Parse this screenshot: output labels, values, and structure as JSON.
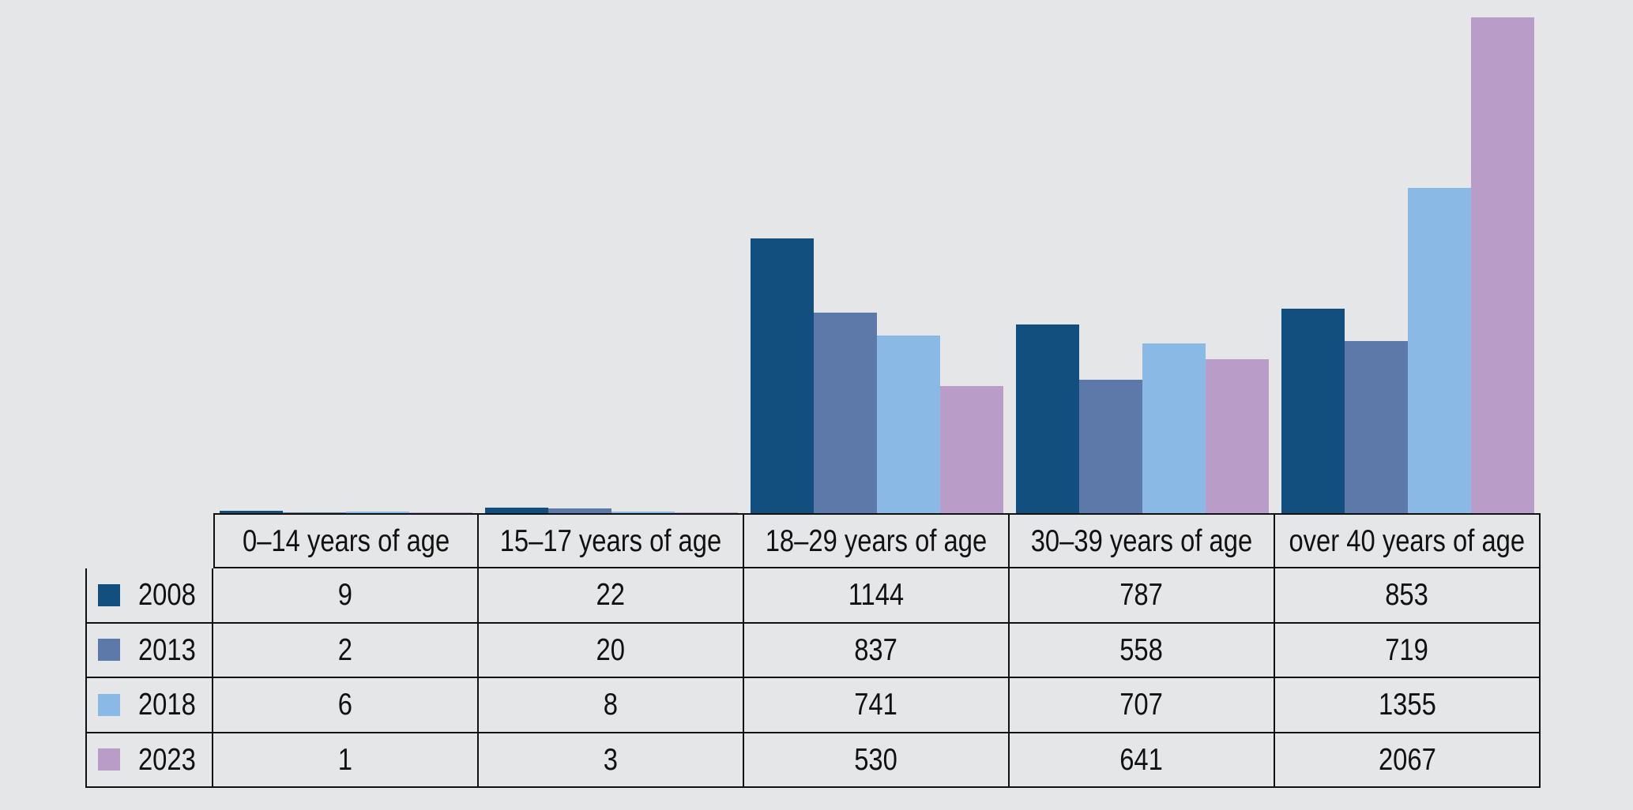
{
  "page": {
    "background_color": "#e5e6e8",
    "text_color": "#111111",
    "grid_line_color": "#111111"
  },
  "chart_data": {
    "type": "bar",
    "title": "",
    "xlabel": "",
    "ylabel": "",
    "ylim": [
      0,
      2067
    ],
    "grid": false,
    "axes_shown": false,
    "legend_position": "table-left-column",
    "data_table_shown": true,
    "categories": [
      "0–14 years of age",
      "15–17 years of age",
      "18–29 years of age",
      "30–39 years of age",
      "over 40 years of age"
    ],
    "series": [
      {
        "name": "2008",
        "color": "#124e7e",
        "values": [
          9,
          22,
          1144,
          787,
          853
        ]
      },
      {
        "name": "2013",
        "color": "#5c79a9",
        "values": [
          2,
          20,
          837,
          558,
          719
        ]
      },
      {
        "name": "2018",
        "color": "#8ab9e5",
        "values": [
          6,
          8,
          741,
          707,
          1355
        ]
      },
      {
        "name": "2023",
        "color": "#ba9cc9",
        "values": [
          1,
          3,
          530,
          641,
          2067
        ]
      }
    ]
  }
}
